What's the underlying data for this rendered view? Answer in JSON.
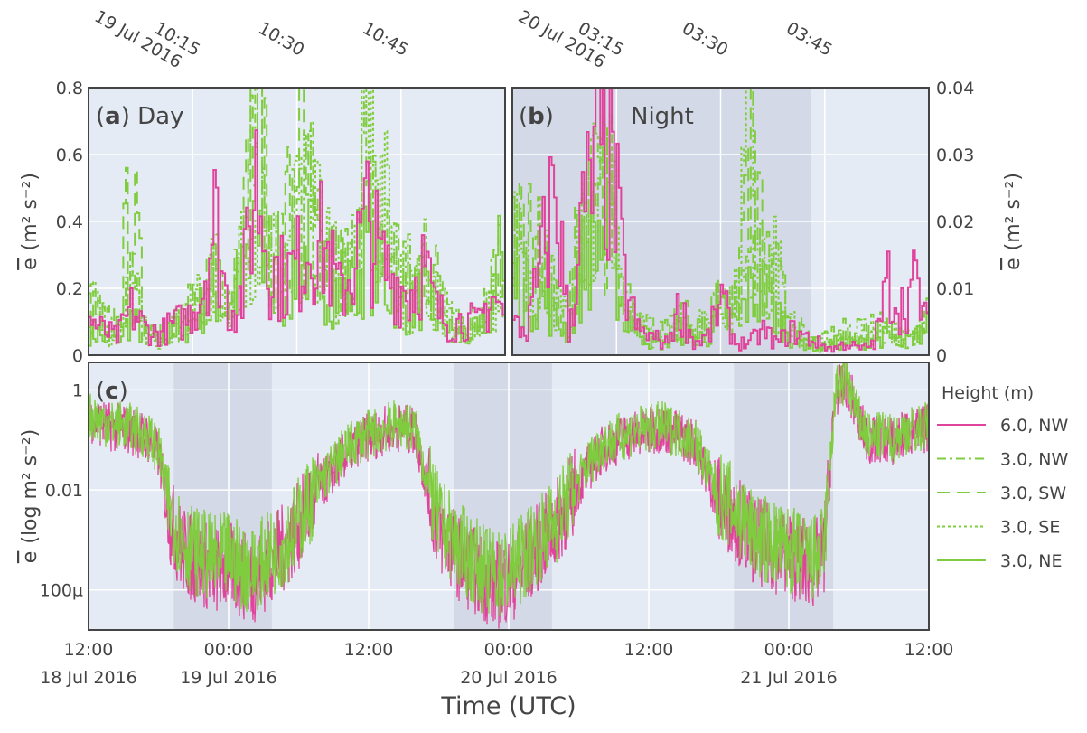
{
  "colors": {
    "pink": "#e0439b",
    "green": "#7fcc3f",
    "bg": "#e5ebf5",
    "night": "#d3d9e6",
    "grid": "#ffffff"
  },
  "chart_data": [
    {
      "id": "a",
      "type": "line",
      "panel_label": "(a)",
      "title": "Day",
      "ylabel": "e (m² s⁻²)",
      "ylim": [
        0,
        0.8
      ],
      "yticks": [
        0,
        0.2,
        0.4,
        0.6,
        0.8
      ],
      "ytick_labels": [
        "0",
        "0.2",
        "0.4",
        "0.6",
        "0.8"
      ],
      "xrange": [
        "10:00",
        "11:00"
      ],
      "xtick_labels": [
        "10:15",
        "10:30",
        "10:45"
      ],
      "xtick_minutes": [
        15,
        30,
        45
      ],
      "date_label": "19 Jul 2016",
      "sample_interval_min": 2,
      "series": [
        {
          "name": "6.0, NW",
          "values": [
            0.12,
            0.08,
            0.06,
            0.15,
            0.09,
            0.07,
            0.1,
            0.12,
            0.2,
            0.45,
            0.15,
            0.2,
            0.6,
            0.3,
            0.25,
            0.3,
            0.4,
            0.35,
            0.2,
            0.3,
            0.45,
            0.3,
            0.25,
            0.2,
            0.3,
            0.15,
            0.1,
            0.12,
            0.1,
            0.2,
            0.12
          ]
        },
        {
          "name": "3.0, NW",
          "values": [
            0.2,
            0.1,
            0.08,
            0.25,
            0.1,
            0.06,
            0.12,
            0.1,
            0.18,
            0.3,
            0.2,
            0.4,
            0.7,
            0.35,
            0.3,
            0.45,
            0.5,
            0.3,
            0.25,
            0.35,
            0.55,
            0.35,
            0.3,
            0.25,
            0.35,
            0.2,
            0.12,
            0.1,
            0.12,
            0.25,
            0.35
          ]
        },
        {
          "name": "3.0, SW",
          "values": [
            0.15,
            0.12,
            0.1,
            0.55,
            0.1,
            0.08,
            0.1,
            0.15,
            0.15,
            0.35,
            0.25,
            0.35,
            0.8,
            0.4,
            0.35,
            0.8,
            0.4,
            0.3,
            0.3,
            0.3,
            0.4,
            0.25,
            0.35,
            0.2,
            0.3,
            0.25,
            0.1,
            0.08,
            0.15,
            0.2,
            0.2
          ]
        },
        {
          "name": "3.0, SE",
          "values": [
            0.1,
            0.08,
            0.06,
            0.2,
            0.08,
            0.05,
            0.1,
            0.1,
            0.22,
            0.25,
            0.18,
            0.3,
            0.5,
            0.3,
            0.3,
            0.55,
            0.45,
            0.35,
            0.25,
            0.25,
            0.8,
            0.6,
            0.3,
            0.15,
            0.25,
            0.2,
            0.1,
            0.08,
            0.1,
            0.18,
            0.15
          ]
        },
        {
          "name": "3.0, NE",
          "values": [
            0.08,
            0.06,
            0.05,
            0.12,
            0.06,
            0.05,
            0.08,
            0.09,
            0.15,
            0.2,
            0.15,
            0.25,
            0.45,
            0.25,
            0.2,
            0.3,
            0.35,
            0.25,
            0.2,
            0.22,
            0.35,
            0.25,
            0.2,
            0.15,
            0.2,
            0.12,
            0.08,
            0.07,
            0.08,
            0.15,
            0.45
          ]
        }
      ]
    },
    {
      "id": "b",
      "type": "line",
      "panel_label": "(b)",
      "title": "Night",
      "ylabel": "e (m² s⁻²)",
      "ylim": [
        0,
        0.04
      ],
      "yticks": [
        0,
        0.01,
        0.02,
        0.03,
        0.04
      ],
      "ytick_labels": [
        "0",
        "0.01",
        "0.02",
        "0.03",
        "0.04"
      ],
      "xrange": [
        "03:00",
        "04:00"
      ],
      "xtick_labels": [
        "03:15",
        "03:30",
        "03:45"
      ],
      "xtick_minutes": [
        15,
        30,
        45
      ],
      "date_label": "20 Jul 2016",
      "night_until_min": 43,
      "sample_interval_min": 2,
      "series": [
        {
          "name": "6.0, NW",
          "values": [
            0.005,
            0.004,
            0.015,
            0.028,
            0.004,
            0.022,
            0.031,
            0.033,
            0.012,
            0.004,
            0.003,
            0.002,
            0.008,
            0.002,
            0.003,
            0.009,
            0.002,
            0.002,
            0.004,
            0.002,
            0.004,
            0.003,
            0.002,
            0.001,
            0.002,
            0.001,
            0.002,
            0.012,
            0.008,
            0.012,
            0.003
          ]
        },
        {
          "name": "3.0, NW",
          "values": [
            0.02,
            0.012,
            0.02,
            0.01,
            0.006,
            0.018,
            0.026,
            0.028,
            0.01,
            0.005,
            0.004,
            0.003,
            0.006,
            0.004,
            0.005,
            0.01,
            0.006,
            0.012,
            0.014,
            0.008,
            0.004,
            0.002,
            0.001,
            0.002,
            0.003,
            0.004,
            0.005,
            0.004,
            0.003,
            0.004,
            0.008
          ]
        },
        {
          "name": "3.0, SW",
          "values": [
            0.018,
            0.022,
            0.014,
            0.008,
            0.006,
            0.028,
            0.032,
            0.022,
            0.009,
            0.004,
            0.003,
            0.004,
            0.007,
            0.005,
            0.004,
            0.012,
            0.007,
            0.035,
            0.016,
            0.012,
            0.006,
            0.003,
            0.002,
            0.003,
            0.004,
            0.002,
            0.003,
            0.003,
            0.002,
            0.003,
            0.006
          ]
        },
        {
          "name": "3.0, SE",
          "values": [
            0.022,
            0.016,
            0.012,
            0.009,
            0.005,
            0.02,
            0.03,
            0.025,
            0.011,
            0.005,
            0.003,
            0.003,
            0.005,
            0.004,
            0.006,
            0.008,
            0.009,
            0.038,
            0.012,
            0.015,
            0.005,
            0.002,
            0.002,
            0.002,
            0.003,
            0.003,
            0.004,
            0.004,
            0.003,
            0.003,
            0.007
          ]
        },
        {
          "name": "3.0, NE",
          "values": [
            0.012,
            0.01,
            0.01,
            0.006,
            0.004,
            0.015,
            0.02,
            0.018,
            0.008,
            0.004,
            0.002,
            0.002,
            0.004,
            0.003,
            0.003,
            0.007,
            0.005,
            0.01,
            0.01,
            0.007,
            0.003,
            0.002,
            0.001,
            0.002,
            0.002,
            0.002,
            0.003,
            0.003,
            0.002,
            0.003,
            0.005
          ]
        }
      ]
    },
    {
      "id": "c",
      "type": "line",
      "panel_label": "(c)",
      "ylabel": "e (log m² s⁻²)",
      "yscale": "log",
      "ylim_log10": [
        -4.8,
        0.55
      ],
      "yticks_log10": [
        -4,
        -2,
        0
      ],
      "ytick_labels": [
        "100µ",
        "0.01",
        "1"
      ],
      "xlabel": "Time (UTC)",
      "xrange_hours": [
        0,
        72
      ],
      "x_origin": "18 Jul 2016 12:00",
      "xtick_hours": [
        0,
        12,
        24,
        36,
        48,
        60,
        72
      ],
      "xtick_labels": [
        "12:00",
        "00:00",
        "12:00",
        "00:00",
        "12:00",
        "00:00",
        "12:00"
      ],
      "xtick_dates": [
        "18 Jul 2016",
        "19 Jul 2016",
        "",
        "20 Jul 2016",
        "",
        "21 Jul 2016",
        ""
      ],
      "night_periods_hours": [
        [
          7.3,
          15.7
        ],
        [
          31.3,
          39.7
        ],
        [
          55.3,
          63.8
        ]
      ],
      "series_note": "hourly log10 of median e, all series overlap",
      "series": [
        {
          "name": "3.0, NE",
          "log10_values": [
            -0.5,
            -0.6,
            -0.7,
            -0.7,
            -0.8,
            -0.9,
            -1.2,
            -2.4,
            -3.0,
            -3.2,
            -3.3,
            -3.4,
            -3.3,
            -3.5,
            -3.6,
            -3.4,
            -3.2,
            -3.0,
            -2.6,
            -2.2,
            -1.8,
            -1.5,
            -1.2,
            -1.0,
            -0.9,
            -0.8,
            -0.7,
            -0.7,
            -0.8,
            -1.8,
            -2.6,
            -2.9,
            -3.2,
            -3.4,
            -3.6,
            -3.7,
            -3.6,
            -3.4,
            -3.1,
            -2.9,
            -2.6,
            -2.2,
            -1.8,
            -1.4,
            -1.1,
            -1.0,
            -0.9,
            -0.8,
            -0.8,
            -0.7,
            -0.8,
            -0.9,
            -1.0,
            -1.6,
            -2.1,
            -2.3,
            -2.6,
            -2.9,
            -3.0,
            -3.1,
            -3.2,
            -3.3,
            -3.4,
            -3.2,
            0.0,
            0.2,
            -0.6,
            -1.0,
            -0.9,
            -1.0,
            -0.8,
            -0.8,
            -0.7
          ]
        },
        {
          "name": "6.0, NW",
          "log10_values": [
            -0.55,
            -0.65,
            -0.75,
            -0.75,
            -0.85,
            -0.95,
            -1.3,
            -2.6,
            -3.2,
            -3.4,
            -3.5,
            -3.6,
            -3.5,
            -3.7,
            -3.8,
            -3.6,
            -3.3,
            -3.1,
            -2.7,
            -2.3,
            -1.9,
            -1.6,
            -1.3,
            -1.05,
            -0.95,
            -0.85,
            -0.75,
            -0.75,
            -0.85,
            -1.9,
            -2.8,
            -3.1,
            -3.4,
            -3.6,
            -3.8,
            -3.9,
            -3.8,
            -3.6,
            -3.3,
            -3.0,
            -2.7,
            -2.3,
            -1.9,
            -1.5,
            -1.2,
            -1.05,
            -0.95,
            -0.85,
            -0.85,
            -0.75,
            -0.85,
            -0.95,
            -1.05,
            -1.7,
            -2.2,
            -2.4,
            -2.7,
            -3.0,
            -3.1,
            -3.2,
            -3.3,
            -3.4,
            -3.5,
            -3.3,
            -0.05,
            0.15,
            -0.65,
            -1.05,
            -0.95,
            -1.05,
            -0.85,
            -0.85,
            -0.75
          ]
        }
      ]
    }
  ],
  "legend": {
    "title": "Height (m)",
    "placement": "right",
    "items": [
      {
        "label": "6.0, NW",
        "color": "pink",
        "dash": "solid"
      },
      {
        "label": "3.0, NW",
        "color": "green",
        "dash": "dashdot"
      },
      {
        "label": "3.0, SW",
        "color": "green",
        "dash": "longdash"
      },
      {
        "label": "3.0, SE",
        "color": "green",
        "dash": "dot"
      },
      {
        "label": "3.0, NE",
        "color": "green",
        "dash": "solid"
      }
    ]
  },
  "texts": {
    "a_letter": "a",
    "a_title": "Day",
    "b_letter": "b",
    "b_title": "Night",
    "c_letter": "c",
    "ylabel_e": "e",
    "ylabel_unit_ab": "(m² s⁻²)",
    "ylabel_unit_c": "(log m² s⁻²)",
    "xlabel": "Time (UTC)"
  }
}
